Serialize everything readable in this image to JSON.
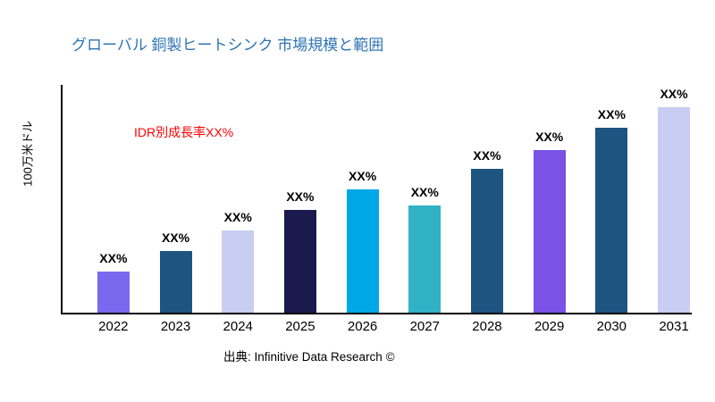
{
  "chart_data": {
    "type": "bar",
    "title": "グローバル 銅製ヒートシンク 市場規模と範囲",
    "title_color": "#2E74B5",
    "ylabel": "100万米ドル",
    "annotation": "IDR別成長率XX%",
    "annotation_color": "#FF0000",
    "source": "出典: Infinitive Data Research ©",
    "categories": [
      "2022",
      "2023",
      "2024",
      "2025",
      "2026",
      "2027",
      "2028",
      "2029",
      "2030",
      "2031"
    ],
    "values": [
      20,
      30,
      40,
      50,
      60,
      52,
      70,
      79,
      90,
      100
    ],
    "value_labels": [
      "XX%",
      "XX%",
      "XX%",
      "XX%",
      "XX%",
      "XX%",
      "XX%",
      "XX%",
      "XX%",
      "XX%"
    ],
    "bar_colors": [
      "#7B68EE",
      "#1E5480",
      "#C9CDF2",
      "#1A1A4E",
      "#00A8E8",
      "#31B2C4",
      "#1E5480",
      "#7A52E6",
      "#1E5480",
      "#C9CDF2"
    ],
    "xlabel": "",
    "ylim": [
      0,
      110
    ],
    "grid": false,
    "legend": "none"
  }
}
